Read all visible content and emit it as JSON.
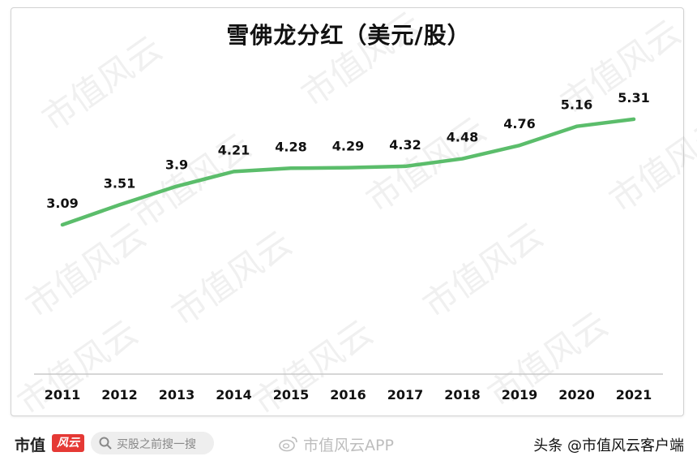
{
  "chart_data": {
    "type": "line",
    "title": "雪佛龙分红（美元/股）",
    "categories": [
      "2011",
      "2012",
      "2013",
      "2014",
      "2015",
      "2016",
      "2017",
      "2018",
      "2019",
      "2020",
      "2021"
    ],
    "series": [
      {
        "values": [
          3.09,
          3.51,
          3.9,
          4.21,
          4.28,
          4.29,
          4.32,
          4.48,
          4.76,
          5.16,
          5.31
        ]
      }
    ],
    "data_labels": [
      "3.09",
      "3.51",
      "3.9",
      "4.21",
      "4.28",
      "4.29",
      "4.32",
      "4.48",
      "4.76",
      "5.16",
      "5.31"
    ],
    "grid": false,
    "legend": "none",
    "colors": {
      "line": "#5bbd6b",
      "axis": "#c8c8c8",
      "label": "#111111"
    }
  },
  "watermark_text": "市值风云",
  "footer": {
    "logo": "市值",
    "logo_badge": "风云",
    "search_text": "买股之前搜一搜",
    "center_brand": "市值风云APP",
    "right_brand": "头条 @市值风云客户端"
  }
}
